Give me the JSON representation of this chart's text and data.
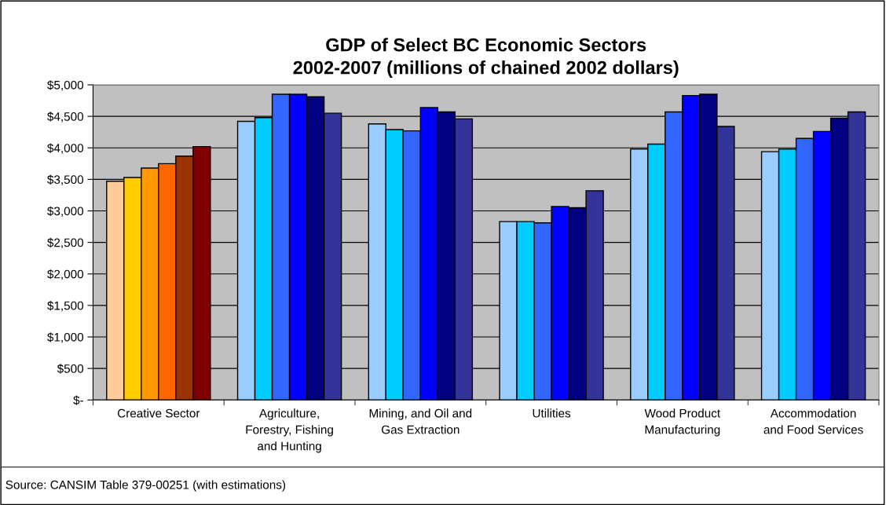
{
  "chart_data": {
    "type": "bar",
    "title": "GDP of Select BC Economic Sectors\n2002-2007 (millions of chained 2002 dollars)",
    "categories": [
      "Creative Sector",
      "Agriculture,\nForestry, Fishing\nand Hunting",
      "Mining, and Oil and\nGas Extraction",
      "Utilities",
      "Wood Product\nManufacturing",
      "Accommodation\nand Food Services"
    ],
    "series": [
      {
        "colors": [
          "#ffcc99",
          "#99ccff",
          "#99ccff",
          "#99ccff",
          "#99ccff",
          "#99ccff"
        ],
        "values": [
          3470,
          4420,
          4380,
          2830,
          3980,
          3940
        ]
      },
      {
        "colors": [
          "#ffcc00",
          "#00ccff",
          "#00ccff",
          "#00ccff",
          "#00ccff",
          "#00ccff"
        ],
        "values": [
          3530,
          4480,
          4290,
          2830,
          4060,
          3980
        ]
      },
      {
        "colors": [
          "#ff9900",
          "#3366ff",
          "#3366ff",
          "#3366ff",
          "#3366ff",
          "#3366ff"
        ],
        "values": [
          3680,
          4850,
          4270,
          2810,
          4570,
          4150
        ]
      },
      {
        "colors": [
          "#ff6600",
          "#0000ff",
          "#0000ff",
          "#0000ff",
          "#0000ff",
          "#0000ff"
        ],
        "values": [
          3750,
          4850,
          4640,
          3070,
          4830,
          4260
        ]
      },
      {
        "colors": [
          "#993300",
          "#000080",
          "#000080",
          "#000080",
          "#000080",
          "#000080"
        ],
        "values": [
          3870,
          4810,
          4570,
          3050,
          4850,
          4470
        ]
      },
      {
        "colors": [
          "#800000",
          "#333399",
          "#333399",
          "#333399",
          "#333399",
          "#333399"
        ],
        "values": [
          4020,
          4550,
          4460,
          3320,
          4340,
          4570
        ]
      }
    ],
    "ylim": [
      0,
      5000
    ],
    "yticks": [
      {
        "value": 0,
        "label": "$-"
      },
      {
        "value": 500,
        "label": "$500"
      },
      {
        "value": 1000,
        "label": "$1,000"
      },
      {
        "value": 1500,
        "label": "$1,500"
      },
      {
        "value": 2000,
        "label": "$2,000"
      },
      {
        "value": 2500,
        "label": "$2,500"
      },
      {
        "value": 3000,
        "label": "$3,000"
      },
      {
        "value": 3500,
        "label": "$3,500"
      },
      {
        "value": 4000,
        "label": "$4,000"
      },
      {
        "value": 4500,
        "label": "$4,500"
      },
      {
        "value": 5000,
        "label": "$5,000"
      }
    ],
    "grid": "y",
    "annotations": [
      "Source: CANSIM Table 379-00251 (with estimations)"
    ]
  }
}
